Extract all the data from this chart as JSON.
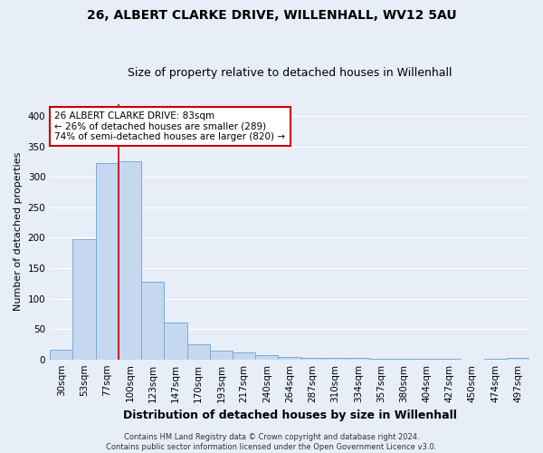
{
  "title": "26, ALBERT CLARKE DRIVE, WILLENHALL, WV12 5AU",
  "subtitle": "Size of property relative to detached houses in Willenhall",
  "xlabel": "Distribution of detached houses by size in Willenhall",
  "ylabel": "Number of detached properties",
  "bar_color": "#c5d8f0",
  "bar_edge_color": "#7aadd4",
  "categories": [
    "30sqm",
    "53sqm",
    "77sqm",
    "100sqm",
    "123sqm",
    "147sqm",
    "170sqm",
    "193sqm",
    "217sqm",
    "240sqm",
    "264sqm",
    "287sqm",
    "310sqm",
    "334sqm",
    "357sqm",
    "380sqm",
    "404sqm",
    "427sqm",
    "450sqm",
    "474sqm",
    "497sqm"
  ],
  "values": [
    16,
    198,
    323,
    325,
    128,
    60,
    25,
    14,
    11,
    7,
    4,
    3,
    2,
    2,
    1,
    1,
    1,
    1,
    0,
    1,
    3
  ],
  "ylim": [
    0,
    420
  ],
  "yticks": [
    0,
    50,
    100,
    150,
    200,
    250,
    300,
    350,
    400
  ],
  "red_line_x": 2.5,
  "annotation_text": "26 ALBERT CLARKE DRIVE: 83sqm\n← 26% of detached houses are smaller (289)\n74% of semi-detached houses are larger (820) →",
  "annotation_box_color": "#ffffff",
  "annotation_border_color": "#cc0000",
  "footer_text": "Contains HM Land Registry data © Crown copyright and database right 2024.\nContains public sector information licensed under the Open Government Licence v3.0.",
  "background_color": "#e8eef8",
  "grid_color": "#ffffff",
  "title_fontsize": 10,
  "subtitle_fontsize": 9,
  "xlabel_fontsize": 9,
  "ylabel_fontsize": 8,
  "tick_fontsize": 7.5,
  "footer_fontsize": 6,
  "annotation_fontsize": 7.5
}
